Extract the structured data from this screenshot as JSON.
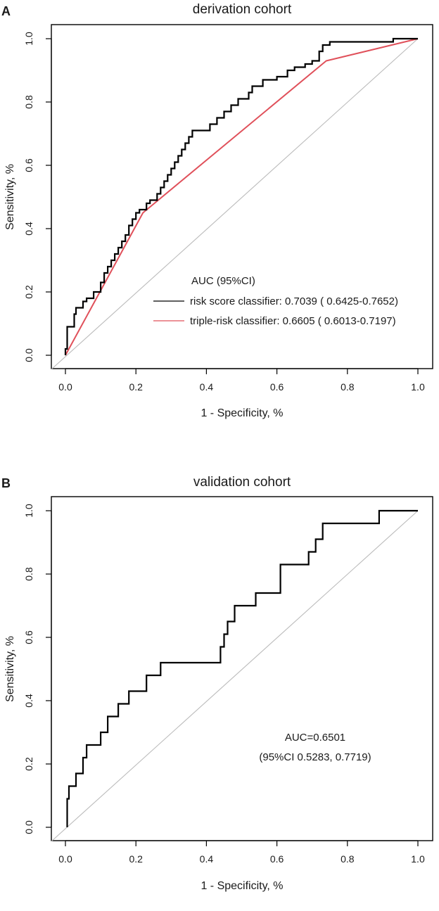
{
  "chart_data": [
    {
      "type": "line",
      "panel_label": "A",
      "title": "derivation cohort",
      "xlabel": "1 - Specificity, %",
      "ylabel": "Sensitivity, %",
      "xlim": [
        0,
        1
      ],
      "ylim": [
        0,
        1
      ],
      "x_ticks": [
        "0.0",
        "0.2",
        "0.4",
        "0.6",
        "0.8",
        "1.0"
      ],
      "y_ticks": [
        "0.0",
        "0.2",
        "0.4",
        "0.6",
        "0.8",
        "1.0"
      ],
      "reference_line": {
        "x": [
          0,
          1
        ],
        "y": [
          0,
          1
        ],
        "color": "#bbbbbb"
      },
      "legend": {
        "title": "AUC (95%CI)",
        "position": "bottom-right",
        "entries": [
          {
            "label": "risk score classifier: 0.7039 ( 0.6425-0.7652)",
            "color": "#000000"
          },
          {
            "label": "triple-risk classifier: 0.6605 ( 0.6013-0.7197)",
            "color": "#e0505a"
          }
        ]
      },
      "series": [
        {
          "name": "risk score classifier",
          "color": "#000000",
          "points": [
            [
              0,
              0
            ],
            [
              0,
              0.02
            ],
            [
              0.005,
              0.02
            ],
            [
              0.005,
              0.09
            ],
            [
              0.025,
              0.09
            ],
            [
              0.025,
              0.13
            ],
            [
              0.03,
              0.13
            ],
            [
              0.03,
              0.15
            ],
            [
              0.05,
              0.15
            ],
            [
              0.05,
              0.17
            ],
            [
              0.06,
              0.17
            ],
            [
              0.06,
              0.18
            ],
            [
              0.08,
              0.18
            ],
            [
              0.08,
              0.2
            ],
            [
              0.1,
              0.2
            ],
            [
              0.1,
              0.23
            ],
            [
              0.11,
              0.23
            ],
            [
              0.11,
              0.26
            ],
            [
              0.12,
              0.26
            ],
            [
              0.12,
              0.28
            ],
            [
              0.13,
              0.28
            ],
            [
              0.13,
              0.3
            ],
            [
              0.14,
              0.3
            ],
            [
              0.14,
              0.32
            ],
            [
              0.15,
              0.32
            ],
            [
              0.15,
              0.34
            ],
            [
              0.16,
              0.34
            ],
            [
              0.16,
              0.36
            ],
            [
              0.17,
              0.36
            ],
            [
              0.17,
              0.38
            ],
            [
              0.18,
              0.38
            ],
            [
              0.18,
              0.41
            ],
            [
              0.19,
              0.41
            ],
            [
              0.19,
              0.43
            ],
            [
              0.2,
              0.43
            ],
            [
              0.2,
              0.45
            ],
            [
              0.21,
              0.45
            ],
            [
              0.21,
              0.46
            ],
            [
              0.23,
              0.46
            ],
            [
              0.23,
              0.48
            ],
            [
              0.24,
              0.48
            ],
            [
              0.24,
              0.49
            ],
            [
              0.26,
              0.49
            ],
            [
              0.26,
              0.51
            ],
            [
              0.27,
              0.51
            ],
            [
              0.27,
              0.53
            ],
            [
              0.28,
              0.53
            ],
            [
              0.28,
              0.55
            ],
            [
              0.29,
              0.55
            ],
            [
              0.29,
              0.57
            ],
            [
              0.3,
              0.57
            ],
            [
              0.3,
              0.59
            ],
            [
              0.31,
              0.59
            ],
            [
              0.31,
              0.61
            ],
            [
              0.32,
              0.61
            ],
            [
              0.32,
              0.63
            ],
            [
              0.33,
              0.63
            ],
            [
              0.33,
              0.65
            ],
            [
              0.34,
              0.65
            ],
            [
              0.34,
              0.67
            ],
            [
              0.35,
              0.67
            ],
            [
              0.35,
              0.69
            ],
            [
              0.36,
              0.69
            ],
            [
              0.36,
              0.71
            ],
            [
              0.41,
              0.71
            ],
            [
              0.41,
              0.73
            ],
            [
              0.43,
              0.73
            ],
            [
              0.43,
              0.75
            ],
            [
              0.45,
              0.75
            ],
            [
              0.45,
              0.77
            ],
            [
              0.47,
              0.77
            ],
            [
              0.47,
              0.79
            ],
            [
              0.49,
              0.79
            ],
            [
              0.49,
              0.81
            ],
            [
              0.52,
              0.81
            ],
            [
              0.52,
              0.83
            ],
            [
              0.53,
              0.83
            ],
            [
              0.53,
              0.85
            ],
            [
              0.56,
              0.85
            ],
            [
              0.56,
              0.87
            ],
            [
              0.6,
              0.87
            ],
            [
              0.6,
              0.88
            ],
            [
              0.63,
              0.88
            ],
            [
              0.63,
              0.9
            ],
            [
              0.65,
              0.9
            ],
            [
              0.65,
              0.91
            ],
            [
              0.68,
              0.91
            ],
            [
              0.68,
              0.92
            ],
            [
              0.7,
              0.92
            ],
            [
              0.7,
              0.93
            ],
            [
              0.72,
              0.93
            ],
            [
              0.72,
              0.96
            ],
            [
              0.73,
              0.96
            ],
            [
              0.73,
              0.98
            ],
            [
              0.75,
              0.98
            ],
            [
              0.75,
              0.99
            ],
            [
              0.93,
              0.99
            ],
            [
              0.93,
              1.0
            ],
            [
              1,
              1.0
            ]
          ]
        },
        {
          "name": "triple-risk classifier",
          "color": "#e0505a",
          "points": [
            [
              0,
              0
            ],
            [
              0.22,
              0.45
            ],
            [
              0.74,
              0.93
            ],
            [
              1,
              1
            ]
          ]
        }
      ]
    },
    {
      "type": "line",
      "panel_label": "B",
      "title": "validation cohort",
      "xlabel": "1 - Specificity, %",
      "ylabel": "Sensitivity, %",
      "xlim": [
        0,
        1
      ],
      "ylim": [
        0,
        1
      ],
      "x_ticks": [
        "0.0",
        "0.2",
        "0.4",
        "0.6",
        "0.8",
        "1.0"
      ],
      "y_ticks": [
        "0.0",
        "0.2",
        "0.4",
        "0.6",
        "0.8",
        "1.0"
      ],
      "reference_line": {
        "x": [
          0,
          1
        ],
        "y": [
          0,
          1
        ],
        "color": "#bbbbbb"
      },
      "annotation": {
        "line1": "AUC=0.6501",
        "line2": "(95%CI 0.5283, 0.7719)"
      },
      "series": [
        {
          "name": "validation ROC",
          "color": "#000000",
          "points": [
            [
              0.005,
              0
            ],
            [
              0.005,
              0.09
            ],
            [
              0.01,
              0.09
            ],
            [
              0.01,
              0.13
            ],
            [
              0.03,
              0.13
            ],
            [
              0.03,
              0.17
            ],
            [
              0.05,
              0.17
            ],
            [
              0.05,
              0.22
            ],
            [
              0.06,
              0.22
            ],
            [
              0.06,
              0.26
            ],
            [
              0.1,
              0.26
            ],
            [
              0.1,
              0.3
            ],
            [
              0.12,
              0.3
            ],
            [
              0.12,
              0.35
            ],
            [
              0.15,
              0.35
            ],
            [
              0.15,
              0.39
            ],
            [
              0.18,
              0.39
            ],
            [
              0.18,
              0.43
            ],
            [
              0.23,
              0.43
            ],
            [
              0.23,
              0.48
            ],
            [
              0.27,
              0.48
            ],
            [
              0.27,
              0.52
            ],
            [
              0.44,
              0.52
            ],
            [
              0.44,
              0.57
            ],
            [
              0.45,
              0.57
            ],
            [
              0.45,
              0.61
            ],
            [
              0.46,
              0.61
            ],
            [
              0.46,
              0.65
            ],
            [
              0.48,
              0.65
            ],
            [
              0.48,
              0.7
            ],
            [
              0.54,
              0.7
            ],
            [
              0.54,
              0.74
            ],
            [
              0.61,
              0.74
            ],
            [
              0.61,
              0.83
            ],
            [
              0.69,
              0.83
            ],
            [
              0.69,
              0.87
            ],
            [
              0.71,
              0.87
            ],
            [
              0.71,
              0.91
            ],
            [
              0.73,
              0.91
            ],
            [
              0.73,
              0.96
            ],
            [
              0.89,
              0.96
            ],
            [
              0.89,
              1.0
            ],
            [
              1,
              1.0
            ]
          ]
        }
      ]
    }
  ]
}
